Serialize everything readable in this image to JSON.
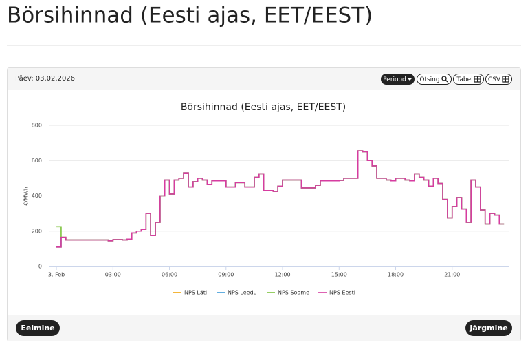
{
  "page": {
    "title": "Börsihinnad (Eesti ajas, EET/EEST)",
    "date_label": "Päev: 03.02.2026",
    "buttons": [
      "Periood",
      "Otsing",
      "Tabel",
      "CSV"
    ],
    "nav": [
      "Eelmine",
      "Järgmine"
    ]
  },
  "chart_data": {
    "type": "line",
    "step": "after",
    "title": "Börsihinnad (Eesti ajas, EET/EEST)",
    "y_label": "€/MWh",
    "x": [
      0,
      0.25,
      0.5,
      2.75,
      3,
      3.5,
      3.75,
      4,
      4.25,
      4.5,
      4.75,
      5,
      5.25,
      5.5,
      5.75,
      6,
      6.25,
      6.5,
      6.75,
      7,
      7.25,
      7.5,
      7.75,
      8,
      8.25,
      9,
      9.5,
      10,
      10.5,
      10.75,
      11,
      11.5,
      11.75,
      12,
      13,
      13.75,
      14,
      15,
      15.25,
      16,
      16.25,
      16.5,
      16.75,
      17,
      17.5,
      17.75,
      18,
      18.5,
      18.75,
      19,
      19.25,
      19.5,
      19.75,
      20,
      20.25,
      20.5,
      20.75,
      21,
      21.25,
      21.5,
      21.75,
      22,
      22.25,
      22.5,
      22.75,
      23,
      23.25,
      23.5
    ],
    "xlim": [
      -1.17,
      24.0
    ],
    "xticks": [
      {
        "value": 0,
        "label": "3. Feb"
      },
      {
        "value": 3,
        "label": "03:00"
      },
      {
        "value": 6,
        "label": "06:00"
      },
      {
        "value": 9,
        "label": "09:00"
      },
      {
        "value": 12,
        "label": "12:00"
      },
      {
        "value": 15,
        "label": "15:00"
      },
      {
        "value": 18,
        "label": "18:00"
      },
      {
        "value": 21,
        "label": "21:00"
      }
    ],
    "ylim": [
      0,
      800
    ],
    "yticks": [
      0,
      200,
      400,
      600,
      800
    ],
    "grid": true,
    "series": [
      {
        "name": "NPS Läti",
        "color": "#f0a30a",
        "values": [
          110,
          165,
          150,
          145,
          152,
          150,
          155,
          190,
          200,
          210,
          300,
          175,
          250,
          400,
          490,
          410,
          490,
          500,
          530,
          450,
          480,
          500,
          490,
          465,
          485,
          450,
          475,
          450,
          505,
          525,
          430,
          425,
          455,
          490,
          445,
          460,
          485,
          488,
          500,
          655,
          650,
          600,
          570,
          500,
          490,
          485,
          500,
          490,
          485,
          525,
          505,
          490,
          455,
          500,
          470,
          380,
          275,
          340,
          390,
          325,
          250,
          490,
          450,
          320,
          240,
          300,
          290,
          240
        ]
      },
      {
        "name": "NPS Leedu",
        "color": "#3a9ad9",
        "values": [
          110,
          165,
          150,
          145,
          152,
          150,
          155,
          190,
          200,
          210,
          300,
          175,
          250,
          400,
          490,
          410,
          490,
          500,
          530,
          450,
          480,
          500,
          490,
          465,
          485,
          450,
          475,
          450,
          505,
          525,
          430,
          425,
          455,
          490,
          445,
          460,
          485,
          488,
          500,
          655,
          650,
          600,
          570,
          500,
          490,
          485,
          500,
          490,
          485,
          525,
          505,
          490,
          455,
          500,
          470,
          380,
          275,
          340,
          390,
          325,
          250,
          490,
          450,
          320,
          240,
          300,
          290,
          240
        ]
      },
      {
        "name": "NPS Soome",
        "color": "#7cc23c",
        "values": [
          225,
          165,
          150,
          145,
          152,
          150,
          155,
          190,
          200,
          210,
          300,
          175,
          250,
          400,
          490,
          410,
          490,
          500,
          530,
          450,
          480,
          500,
          490,
          465,
          485,
          450,
          475,
          450,
          505,
          525,
          430,
          425,
          455,
          490,
          445,
          460,
          485,
          488,
          500,
          655,
          650,
          600,
          570,
          500,
          490,
          485,
          500,
          490,
          485,
          525,
          505,
          490,
          455,
          500,
          470,
          380,
          275,
          340,
          390,
          325,
          250,
          490,
          450,
          320,
          240,
          300,
          290,
          240
        ]
      },
      {
        "name": "NPS Eesti",
        "color": "#d63ca0",
        "values": [
          110,
          165,
          150,
          145,
          152,
          150,
          155,
          190,
          200,
          210,
          300,
          175,
          250,
          400,
          490,
          410,
          490,
          500,
          530,
          450,
          480,
          500,
          490,
          465,
          485,
          450,
          475,
          450,
          505,
          525,
          430,
          425,
          455,
          490,
          445,
          460,
          485,
          488,
          500,
          655,
          650,
          600,
          570,
          500,
          490,
          485,
          500,
          490,
          485,
          525,
          505,
          490,
          455,
          500,
          470,
          380,
          275,
          340,
          390,
          325,
          250,
          490,
          450,
          320,
          240,
          300,
          290,
          240
        ]
      }
    ]
  }
}
